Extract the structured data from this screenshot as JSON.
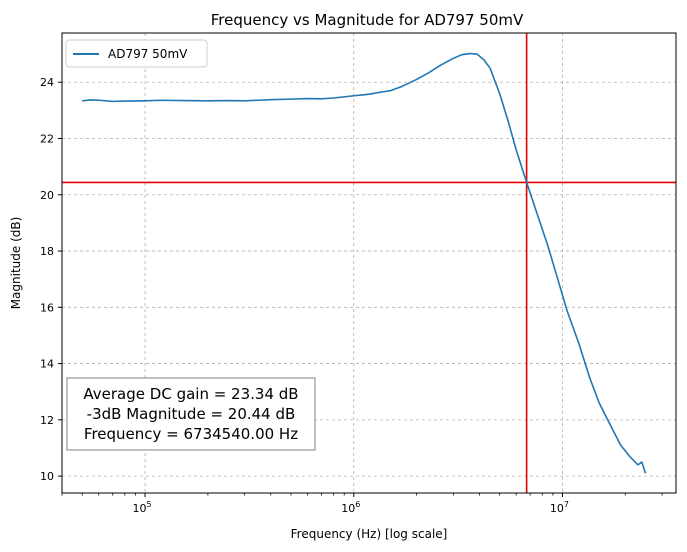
{
  "chart_data": {
    "type": "line",
    "title": "Frequency vs Magnitude for AD797 50mV",
    "xlabel": "Frequency (Hz) [log scale]",
    "ylabel": "Magnitude (dB)",
    "x_scale": "log",
    "xlim": [
      40000,
      35000000
    ],
    "ylim": [
      9.4,
      25.75
    ],
    "x_ticks": [
      {
        "value": 100000,
        "base": "10",
        "exp": "5"
      },
      {
        "value": 1000000,
        "base": "10",
        "exp": "6"
      },
      {
        "value": 10000000,
        "base": "10",
        "exp": "7"
      }
    ],
    "y_ticks": [
      10,
      12,
      14,
      16,
      18,
      20,
      22,
      24
    ],
    "grid": true,
    "legend_position": "top-left",
    "series": [
      {
        "name": "AD797 50mV",
        "color": "#1f77b4",
        "points": [
          [
            50000,
            23.34
          ],
          [
            55000,
            23.37
          ],
          [
            60000,
            23.36
          ],
          [
            70000,
            23.32
          ],
          [
            80000,
            23.33
          ],
          [
            100000,
            23.34
          ],
          [
            120000,
            23.36
          ],
          [
            150000,
            23.35
          ],
          [
            200000,
            23.34
          ],
          [
            250000,
            23.35
          ],
          [
            300000,
            23.34
          ],
          [
            350000,
            23.36
          ],
          [
            400000,
            23.38
          ],
          [
            500000,
            23.4
          ],
          [
            600000,
            23.42
          ],
          [
            700000,
            23.41
          ],
          [
            800000,
            23.44
          ],
          [
            900000,
            23.48
          ],
          [
            1000000,
            23.52
          ],
          [
            1100000,
            23.55
          ],
          [
            1200000,
            23.58
          ],
          [
            1300000,
            23.63
          ],
          [
            1500000,
            23.7
          ],
          [
            1700000,
            23.85
          ],
          [
            2000000,
            24.1
          ],
          [
            2300000,
            24.35
          ],
          [
            2600000,
            24.6
          ],
          [
            3000000,
            24.85
          ],
          [
            3300000,
            24.98
          ],
          [
            3600000,
            25.02
          ],
          [
            3900000,
            25.0
          ],
          [
            4200000,
            24.8
          ],
          [
            4500000,
            24.5
          ],
          [
            5000000,
            23.6
          ],
          [
            5500000,
            22.6
          ],
          [
            6000000,
            21.6
          ],
          [
            6734540,
            20.44
          ],
          [
            7500000,
            19.4
          ],
          [
            8500000,
            18.2
          ],
          [
            9500000,
            17.0
          ],
          [
            10500000,
            15.9
          ],
          [
            12000000,
            14.7
          ],
          [
            13500000,
            13.5
          ],
          [
            15000000,
            12.6
          ],
          [
            17000000,
            11.8
          ],
          [
            19000000,
            11.1
          ],
          [
            21000000,
            10.7
          ],
          [
            23000000,
            10.4
          ],
          [
            24000000,
            10.5
          ],
          [
            25000000,
            10.1
          ]
        ]
      }
    ],
    "reference_lines": [
      {
        "orientation": "horizontal",
        "value": 20.44,
        "color": "#e00000"
      },
      {
        "orientation": "vertical",
        "value": 6734540,
        "color": "#e00000"
      }
    ],
    "annotation": {
      "lines": [
        "Average DC gain = 23.34 dB",
        "-3dB Magnitude = 20.44 dB",
        "Frequency = 6734540.00 Hz"
      ]
    }
  }
}
